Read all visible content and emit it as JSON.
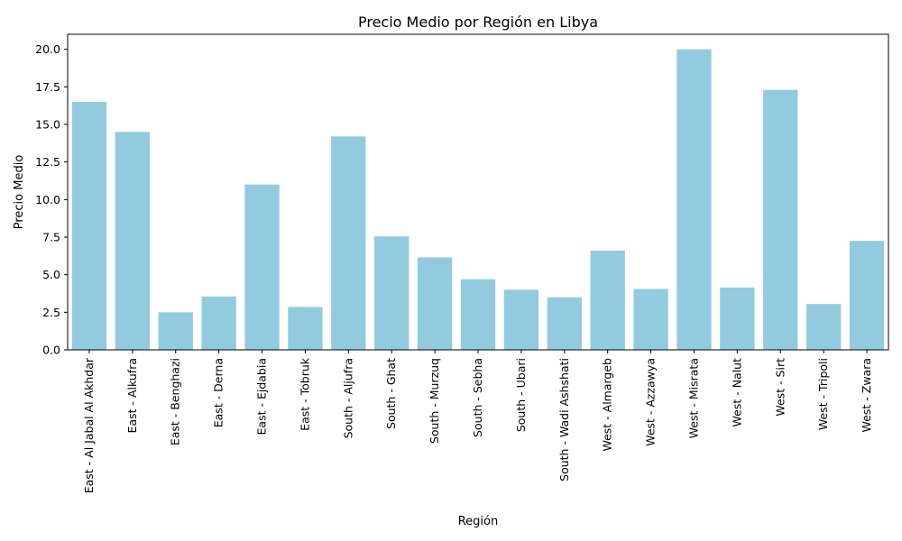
{
  "chart_data": {
    "type": "bar",
    "title": "Precio Medio por Región en Libya",
    "xlabel": "Región",
    "ylabel": "Precio Medio",
    "ylim": [
      0,
      21
    ],
    "yticks": [
      "0.0",
      "2.5",
      "5.0",
      "7.5",
      "10.0",
      "12.5",
      "15.0",
      "17.5",
      "20.0"
    ],
    "ytick_values": [
      0,
      2.5,
      5,
      7.5,
      10,
      12.5,
      15,
      17.5,
      20
    ],
    "grid": false,
    "bar_color": "#92cadf",
    "categories": [
      "East - Al Jabal Al Akhdar",
      "East - Alkufra",
      "East - Benghazi",
      "East - Derna",
      "East - Ejdabia",
      "East - Tobruk",
      "South - Aljufra",
      "South - Ghat",
      "South - Murzuq",
      "South - Sebha",
      "South - Ubari",
      "South - Wadi Ashshati",
      "West - Almargeb",
      "West - Azzawya",
      "West - Misrata",
      "West - Nalut",
      "West - Sirt",
      "West - Tripoli",
      "West - Zwara"
    ],
    "values": [
      16.5,
      14.5,
      2.5,
      3.55,
      11.0,
      2.85,
      14.2,
      7.55,
      6.15,
      4.7,
      4.0,
      3.5,
      6.6,
      4.05,
      20.0,
      4.15,
      17.3,
      3.05,
      7.25
    ]
  }
}
